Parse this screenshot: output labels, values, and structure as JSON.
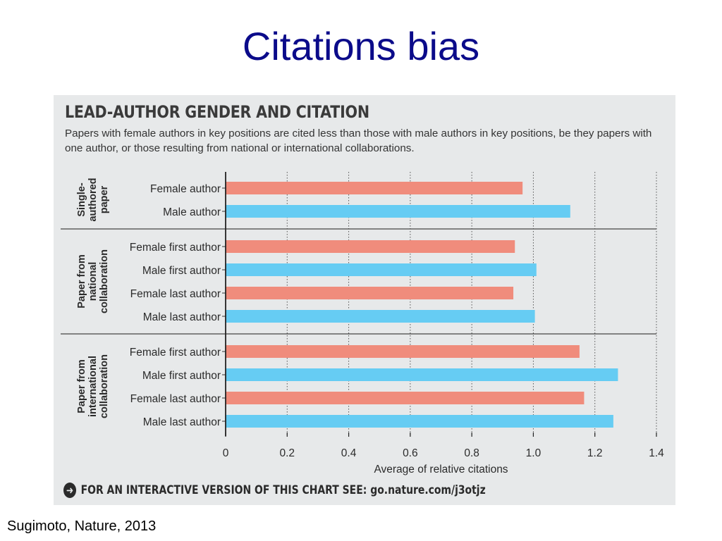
{
  "slide": {
    "title": "Citations bias",
    "citation": "Sugimoto, Nature, 2013"
  },
  "figure": {
    "heading": "LEAD-AUTHOR GENDER AND CITATION",
    "subtitle": "Papers with female authors in key positions are cited less than those with male authors in key positions, be they papers with one author, or those resulting from national or international collaborations.",
    "footer_lead": "FOR AN INTERACTIVE VERSION OF THIS CHART SEE:",
    "footer_link": "go.nature.com/j3otjz",
    "footer_icon": "arrow-right-circle-icon"
  },
  "colors": {
    "female": "#f08c7c",
    "male": "#66ccf3",
    "title": "#0b0b8a",
    "panel": "#e7e9ea"
  },
  "chart_data": {
    "type": "bar",
    "orientation": "horizontal",
    "xlabel": "Average of relative citations",
    "xlim": [
      0,
      1.4
    ],
    "xticks": [
      "0",
      "0.2",
      "0.4",
      "0.6",
      "0.8",
      "1.0",
      "1.2",
      "1.4"
    ],
    "grid": "dotted vertical",
    "groups": [
      {
        "label": "Single-authored paper",
        "label_lines": [
          "Single-",
          "authored",
          "paper"
        ],
        "bars": [
          {
            "label": "Female author",
            "value": 0.965,
            "gender": "female"
          },
          {
            "label": "Male author",
            "value": 1.12,
            "gender": "male"
          }
        ]
      },
      {
        "label": "Paper from national collaboration",
        "label_lines": [
          "Paper from",
          "national",
          "collaboration"
        ],
        "bars": [
          {
            "label": "Female first author",
            "value": 0.94,
            "gender": "female"
          },
          {
            "label": "Male first author",
            "value": 1.01,
            "gender": "male"
          },
          {
            "label": "Female last author",
            "value": 0.935,
            "gender": "female"
          },
          {
            "label": "Male last author",
            "value": 1.005,
            "gender": "male"
          }
        ]
      },
      {
        "label": "Paper from international collaboration",
        "label_lines": [
          "Paper from",
          "international",
          "collaboration"
        ],
        "bars": [
          {
            "label": "Female first author",
            "value": 1.15,
            "gender": "female"
          },
          {
            "label": "Male first author",
            "value": 1.275,
            "gender": "male"
          },
          {
            "label": "Female last author",
            "value": 1.165,
            "gender": "female"
          },
          {
            "label": "Male last author",
            "value": 1.26,
            "gender": "male"
          }
        ]
      }
    ]
  }
}
